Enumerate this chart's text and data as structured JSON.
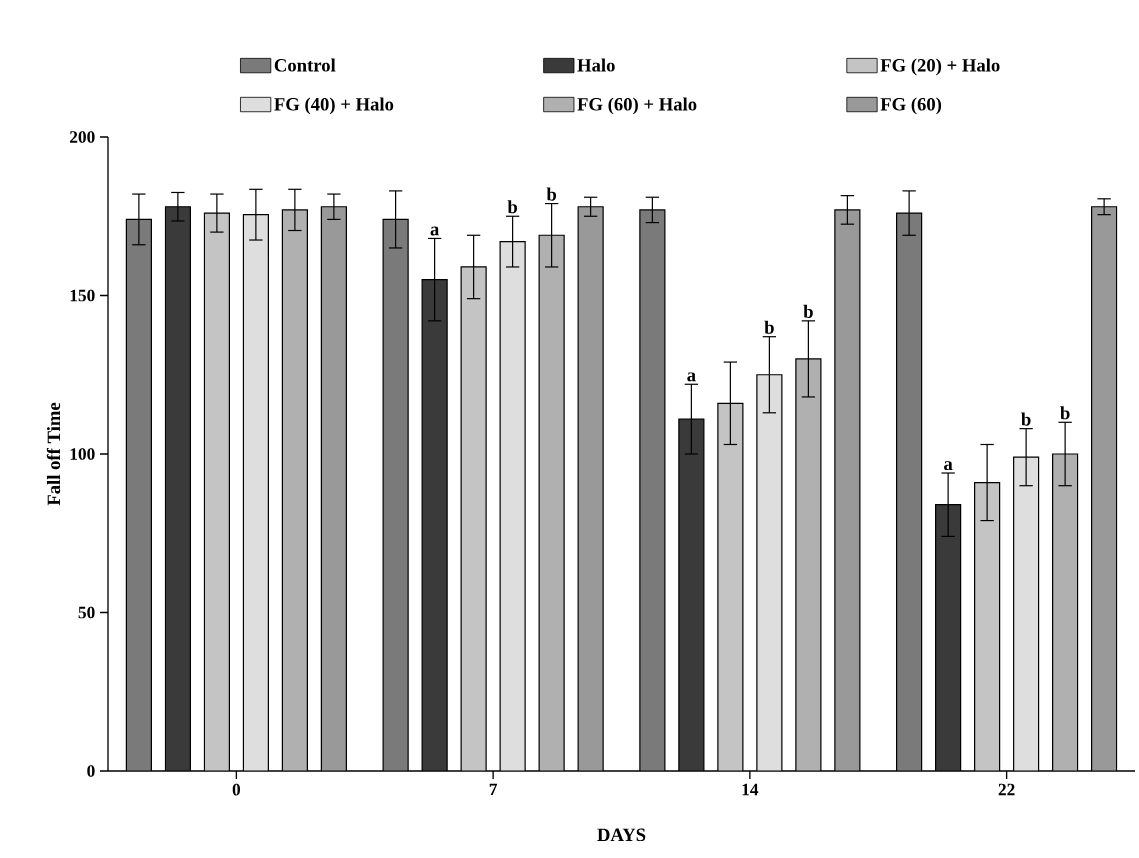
{
  "chart_data": {
    "type": "bar",
    "xlabel": "DAYS",
    "ylabel": "Fall off Time",
    "categories": [
      "0",
      "7",
      "14",
      "22"
    ],
    "ylim": [
      0,
      200
    ],
    "yticks": [
      0,
      50,
      100,
      150,
      200
    ],
    "legend": "top",
    "grid": false,
    "series": [
      {
        "name": "Control",
        "color": "#7a7a7a",
        "values": [
          174,
          174,
          177,
          176
        ],
        "errors": [
          8,
          9,
          4,
          7
        ]
      },
      {
        "name": "Halo",
        "color": "#3a3a3a",
        "values": [
          178,
          155,
          111,
          84
        ],
        "errors": [
          4.5,
          13,
          11,
          10
        ],
        "value_labels": [
          null,
          "a",
          "a",
          "a"
        ]
      },
      {
        "name": "FG (20) + Halo",
        "color": "#c4c4c4",
        "values": [
          176,
          159,
          116,
          91
        ],
        "errors": [
          6,
          10,
          13,
          12
        ]
      },
      {
        "name": "FG (40) + Halo",
        "color": "#dedede",
        "values": [
          175.5,
          167,
          125,
          99
        ],
        "errors": [
          8,
          8,
          12,
          9
        ],
        "value_labels": [
          null,
          "b",
          "b",
          "b"
        ]
      },
      {
        "name": "FG (60) + Halo",
        "color": "#b0b0b0",
        "values": [
          177,
          169,
          130,
          100
        ],
        "errors": [
          6.5,
          10,
          12,
          10
        ],
        "value_labels": [
          null,
          "b",
          "b",
          "b"
        ]
      },
      {
        "name": "FG (60)",
        "color": "#999999",
        "values": [
          178,
          178,
          177,
          178
        ],
        "errors": [
          4,
          3,
          4.5,
          2.5
        ]
      }
    ]
  }
}
